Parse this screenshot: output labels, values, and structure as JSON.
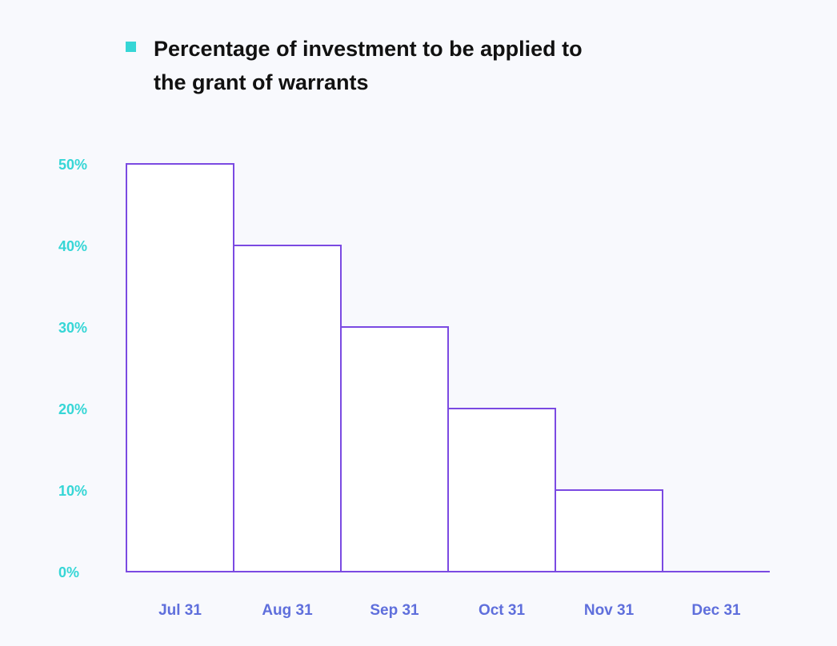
{
  "chart_data": {
    "type": "bar",
    "title": "",
    "xlabel": "",
    "ylabel": "",
    "categories": [
      "Jul 31",
      "Aug 31",
      "Sep 31",
      "Oct 31",
      "Nov 31",
      "Dec 31"
    ],
    "series": [
      {
        "name": "Percentage of investment to be applied to the grant of warrants",
        "values": [
          50,
          40,
          30,
          20,
          10,
          0
        ]
      }
    ],
    "ylim": [
      0,
      50
    ],
    "yticks": [
      0,
      10,
      20,
      30,
      40,
      50
    ],
    "ytick_labels": [
      "0%",
      "10%",
      "20%",
      "30%",
      "40%",
      "50%"
    ],
    "legend_position": "top-left",
    "grid": false
  },
  "colors": {
    "bar_outline": "#7b4ae2",
    "bar_fill": "#ffffff",
    "ytick_text": "#36d6d6",
    "xtick_text": "#5f6fdc",
    "legend_swatch": "#36d6d6",
    "axis_line": "#7b4ae2"
  }
}
